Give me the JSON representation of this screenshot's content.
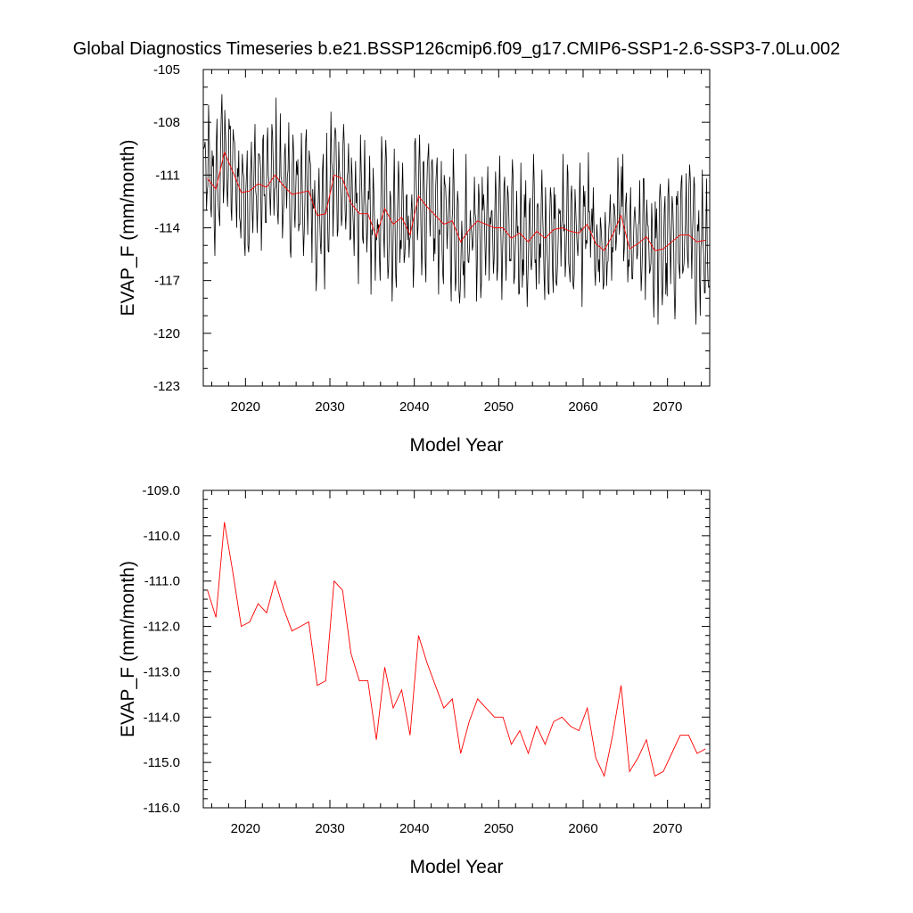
{
  "title": "Global Diagnostics Timeseries b.e21.BSSP126cmip6.f09_g17.CMIP6-SSP1-2.6-SSP3-7.0Lu.002",
  "colors": {
    "monthly": "#000000",
    "annual": "#ff0000"
  },
  "chart_data": [
    {
      "type": "line",
      "xlabel": "Model Year",
      "ylabel": "EVAP_F (mm/month)",
      "xlim": [
        2015,
        2075
      ],
      "ylim": [
        -123,
        -105
      ],
      "x_ticks": [
        "2020",
        "2030",
        "2040",
        "2050",
        "2060",
        "2070"
      ],
      "y_ticks": [
        "-105",
        "-108",
        "-111",
        "-114",
        "-117",
        "-120",
        "-123"
      ],
      "series": [
        {
          "style": "monthly",
          "start_year": 2015,
          "values": []
        },
        {
          "style": "annual",
          "x": [
            2015.5,
            2016.5,
            2017.5,
            2018.5,
            2019.5,
            2020.5,
            2021.5,
            2022.5,
            2023.5,
            2024.5,
            2025.5,
            2026.5,
            2027.5,
            2028.5,
            2029.5,
            2030.5,
            2031.5,
            2032.5,
            2033.5,
            2034.5,
            2035.5,
            2036.5,
            2037.5,
            2038.5,
            2039.5,
            2040.5,
            2041.5,
            2042.5,
            2043.5,
            2044.5,
            2045.5,
            2046.5,
            2047.5,
            2048.5,
            2049.5,
            2050.5,
            2051.5,
            2052.5,
            2053.5,
            2054.5,
            2055.5,
            2056.5,
            2057.5,
            2058.5,
            2059.5,
            2060.5,
            2061.5,
            2062.5,
            2063.5,
            2064.5,
            2065.5,
            2066.5,
            2067.5,
            2068.5,
            2069.5,
            2070.5,
            2071.5,
            2072.5,
            2073.5,
            2074.5
          ],
          "values": [
            -111.2,
            -111.8,
            -109.7,
            -110.8,
            -112.0,
            -111.9,
            -111.5,
            -111.7,
            -111.0,
            -111.6,
            -112.1,
            -112.0,
            -111.9,
            -113.3,
            -113.2,
            -111.0,
            -111.2,
            -112.6,
            -113.2,
            -113.2,
            -114.5,
            -112.9,
            -113.8,
            -113.4,
            -114.4,
            -112.2,
            -112.8,
            -113.3,
            -113.8,
            -113.6,
            -114.8,
            -114.1,
            -113.6,
            -113.8,
            -114.0,
            -114.0,
            -114.6,
            -114.3,
            -114.8,
            -114.2,
            -114.6,
            -114.1,
            -114.0,
            -114.2,
            -114.3,
            -113.8,
            -114.9,
            -115.3,
            -114.4,
            -113.3,
            -115.2,
            -114.9,
            -114.5,
            -115.3,
            -115.2,
            -114.8,
            -114.4,
            -114.4,
            -114.8,
            -114.7
          ]
        }
      ]
    },
    {
      "type": "line",
      "xlabel": "Model Year",
      "ylabel": "EVAP_F (mm/month)",
      "xlim": [
        2015,
        2075
      ],
      "ylim": [
        -116.0,
        -109.0
      ],
      "x_ticks": [
        "2020",
        "2030",
        "2040",
        "2050",
        "2060",
        "2070"
      ],
      "y_ticks": [
        "-109.0",
        "-110.0",
        "-111.0",
        "-112.0",
        "-113.0",
        "-114.0",
        "-115.0",
        "-116.0"
      ],
      "series": [
        {
          "style": "annual",
          "x": [
            2015.5,
            2016.5,
            2017.5,
            2018.5,
            2019.5,
            2020.5,
            2021.5,
            2022.5,
            2023.5,
            2024.5,
            2025.5,
            2026.5,
            2027.5,
            2028.5,
            2029.5,
            2030.5,
            2031.5,
            2032.5,
            2033.5,
            2034.5,
            2035.5,
            2036.5,
            2037.5,
            2038.5,
            2039.5,
            2040.5,
            2041.5,
            2042.5,
            2043.5,
            2044.5,
            2045.5,
            2046.5,
            2047.5,
            2048.5,
            2049.5,
            2050.5,
            2051.5,
            2052.5,
            2053.5,
            2054.5,
            2055.5,
            2056.5,
            2057.5,
            2058.5,
            2059.5,
            2060.5,
            2061.5,
            2062.5,
            2063.5,
            2064.5,
            2065.5,
            2066.5,
            2067.5,
            2068.5,
            2069.5,
            2070.5,
            2071.5,
            2072.5,
            2073.5,
            2074.5
          ],
          "values": [
            -111.2,
            -111.8,
            -109.7,
            -110.8,
            -112.0,
            -111.9,
            -111.5,
            -111.7,
            -111.0,
            -111.6,
            -112.1,
            -112.0,
            -111.9,
            -113.3,
            -113.2,
            -111.0,
            -111.2,
            -112.6,
            -113.2,
            -113.2,
            -114.5,
            -112.9,
            -113.8,
            -113.4,
            -114.4,
            -112.2,
            -112.8,
            -113.3,
            -113.8,
            -113.6,
            -114.8,
            -114.1,
            -113.6,
            -113.8,
            -114.0,
            -114.0,
            -114.6,
            -114.3,
            -114.8,
            -114.2,
            -114.6,
            -114.1,
            -114.0,
            -114.2,
            -114.3,
            -113.8,
            -114.9,
            -115.3,
            -114.4,
            -113.3,
            -115.2,
            -114.9,
            -114.5,
            -115.3,
            -115.2,
            -114.8,
            -114.4,
            -114.4,
            -114.8,
            -114.7
          ]
        }
      ]
    }
  ]
}
